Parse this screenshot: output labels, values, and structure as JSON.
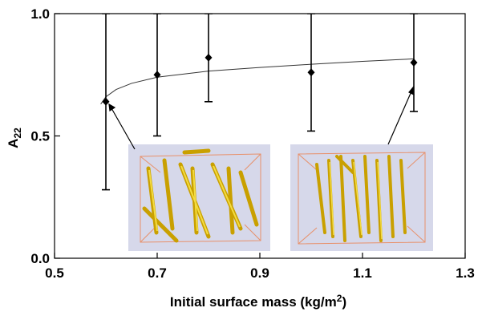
{
  "chart_data": {
    "type": "errorbar",
    "x_label": {
      "text": "Initial surface mass (kg/m",
      "superscript": "2",
      "suffix": ")"
    },
    "y_label": {
      "text": "A",
      "subscript": "22"
    },
    "xlim": [
      0.5,
      1.3
    ],
    "xticks": [
      0.5,
      0.7,
      0.9,
      1.1,
      1.3
    ],
    "ylim": [
      0,
      1
    ],
    "yticks": [
      {
        "value": 0,
        "label": "0.0"
      },
      0.5,
      {
        "value": 1,
        "label": "1.0"
      }
    ],
    "points": {
      "color": "#000000",
      "x": [
        0.6,
        0.7,
        0.8,
        1.0,
        1.2
      ],
      "values": [
        0.64,
        0.75,
        0.82,
        0.76,
        0.8
      ],
      "errors": [
        0.36,
        0.25,
        0.18,
        0.24,
        0.2
      ]
    },
    "fit": {
      "color": "#333333",
      "x": [
        0.59,
        0.6,
        0.62,
        0.65,
        0.7,
        0.8,
        0.9,
        1.0,
        1.1,
        1.2
      ],
      "values": [
        0.63,
        0.66,
        0.69,
        0.715,
        0.74,
        0.765,
        0.78,
        0.793,
        0.805,
        0.815
      ]
    }
  }
}
